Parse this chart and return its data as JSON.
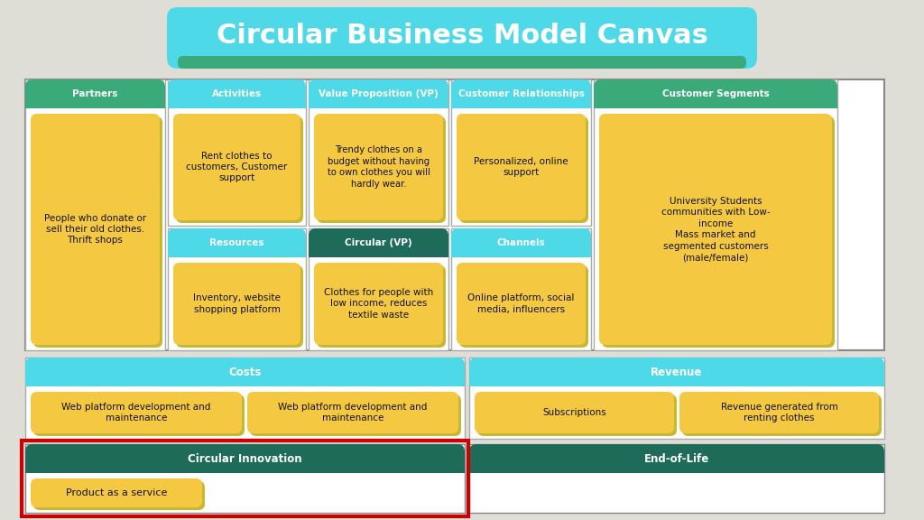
{
  "title": "Circular Business Model Canvas",
  "title_bg": "#4DD9E8",
  "title_stripe": "#3BAA7A",
  "background": "#DEDED6",
  "header_cyan": "#4DD9E8",
  "header_teal": "#1E6B5A",
  "header_green": "#3BAA7A",
  "cell_yellow": "#F5C842",
  "cell_shadow": "#C8B830",
  "border_red": "#CC0000",
  "text_white": "#FFFFFF",
  "text_dark": "#111111",
  "costs_label": "Costs",
  "costs_items": [
    "Web platform development and\nmaintenance",
    "Web platform development and\nmaintenance"
  ],
  "revenue_label": "Revenue",
  "revenue_items": [
    "Subscriptions",
    "Revenue generated from\nrenting clothes"
  ],
  "ci_label": "Circular Innovation",
  "ci_content": "Product as a service",
  "eol_label": "End-of-Life",
  "partners_content": "People who donate or\nsell their old clothes.\nThrift shops",
  "activities_content": "Rent clothes to\ncustomers, Customer\nsupport",
  "resources_content": "Inventory, website\nshopping platform",
  "vp_content": "Trendy clothes on a\nbudget without having\nto own clothes you will\nhardly wear.",
  "cvp_content": "Clothes for people with\nlow income, reduces\ntextile waste",
  "cr_content": "Personalized, online\nsupport",
  "channels_content": "Online platform, social\nmedia, influencers",
  "cs_content": "University Students\ncommunities with Low-\nincome\nMass market and\nsegmented customers\n(male/female)"
}
